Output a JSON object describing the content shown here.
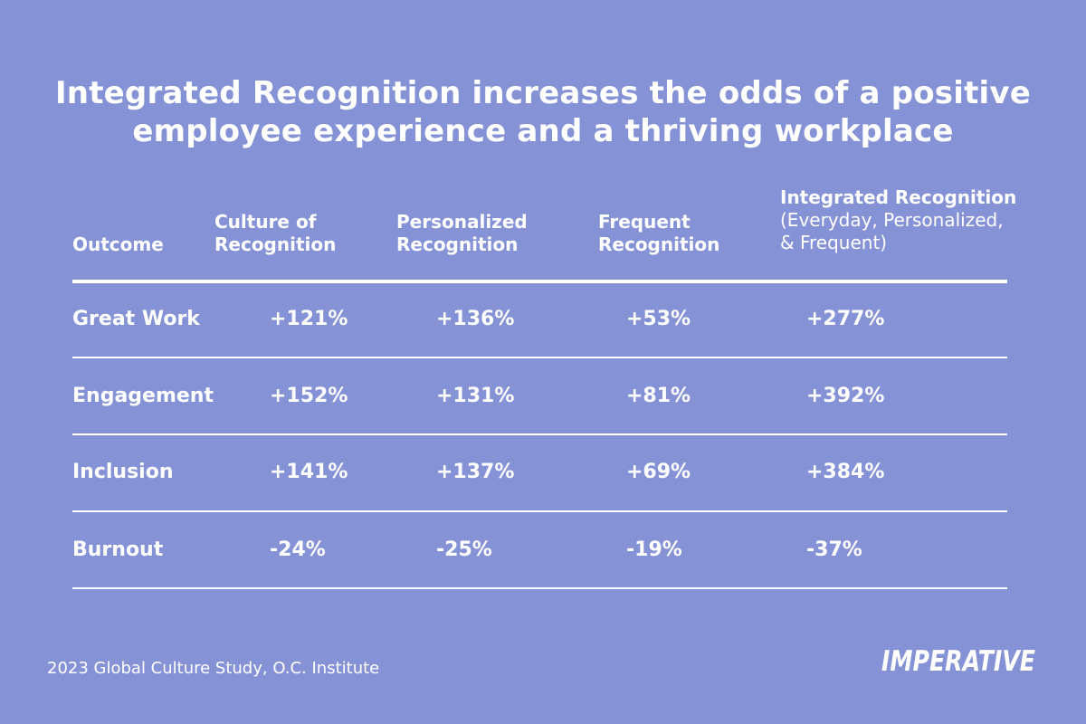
{
  "title": {
    "line1": "Integrated Recognition increases the odds of a positive",
    "line2": "employee experience and a thriving workplace"
  },
  "chart_data": {
    "type": "table",
    "columns": [
      {
        "id": "outcome",
        "lines": [
          "Outcome"
        ]
      },
      {
        "id": "culture",
        "lines": [
          "Culture of",
          "Recognition"
        ]
      },
      {
        "id": "personalized",
        "lines": [
          "Personalized",
          "Recognition"
        ]
      },
      {
        "id": "frequent",
        "lines": [
          "Frequent",
          "Recognition"
        ]
      },
      {
        "id": "integrated",
        "lines": [
          "Integrated Recognition",
          "(Everyday, Personalized,",
          "& Frequent)"
        ]
      }
    ],
    "rows": [
      {
        "outcome": "Great Work",
        "values": [
          "+121%",
          "+136%",
          "+53%",
          "+277%"
        ]
      },
      {
        "outcome": "Engagement",
        "values": [
          "+152%",
          "+131%",
          "+81%",
          "+392%"
        ]
      },
      {
        "outcome": "Inclusion",
        "values": [
          "+141%",
          "+137%",
          "+69%",
          "+384%"
        ]
      },
      {
        "outcome": "Burnout",
        "values": [
          "-24%",
          "-25%",
          "-19%",
          "-37%"
        ]
      }
    ]
  },
  "source": "2023 Global Culture Study, O.C. Institute",
  "logo": {
    "text": "IMPERATIVE"
  }
}
